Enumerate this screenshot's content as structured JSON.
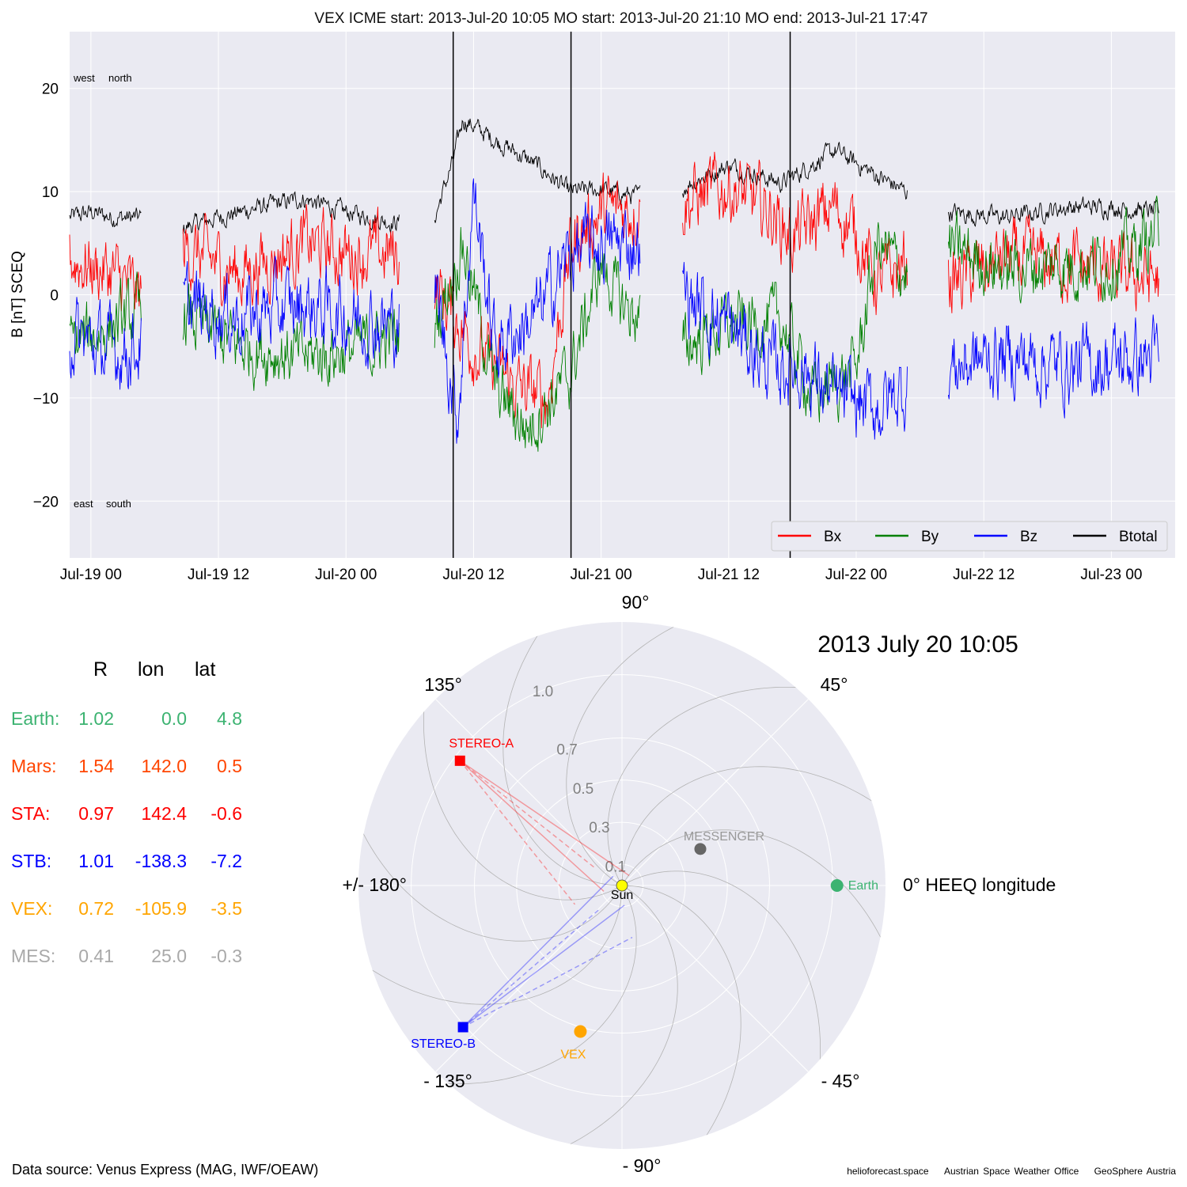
{
  "title": "VEX    ICME start: 2013-Jul-20 10:05   MO start: 2013-Jul-20 21:10   MO end: 2013-Jul-21 17:47",
  "colors": {
    "Bx": "#ff0000",
    "By": "#008000",
    "Bz": "#0000ff",
    "Btotal": "#000000",
    "panel_bg": "#eaeaf2",
    "grid": "#ffffff"
  },
  "chart_data": [
    {
      "type": "line",
      "ylabel": "B [nT] SCEQ",
      "ylim": [
        -25.5,
        25.5
      ],
      "yticks": [
        20,
        10,
        0,
        -10,
        -20
      ],
      "ytick_labels": [
        "20",
        "10",
        "0",
        "−10",
        "−20"
      ],
      "xlim": [
        "2013-07-18 22:00",
        "2013-07-23 06:00"
      ],
      "xticks": [
        "2013-07-19 00:00",
        "2013-07-19 12:00",
        "2013-07-20 00:00",
        "2013-07-20 12:00",
        "2013-07-21 00:00",
        "2013-07-21 12:00",
        "2013-07-22 00:00",
        "2013-07-22 12:00",
        "2013-07-23 00:00"
      ],
      "xtick_labels": [
        "Jul-19 00",
        "Jul-19 12",
        "Jul-20 00",
        "Jul-20 12",
        "Jul-21 00",
        "Jul-21 12",
        "Jul-22 00",
        "Jul-22 12",
        "Jul-23 00"
      ],
      "annotations": {
        "top_left": [
          "west",
          "north"
        ],
        "bottom_left": [
          "east",
          "south"
        ]
      },
      "vlines": [
        "2013-07-20 10:05",
        "2013-07-20 21:10",
        "2013-07-21 17:47"
      ],
      "legend": {
        "placement": "lower-right",
        "entries": [
          "Bx",
          "By",
          "Bz",
          "Btotal"
        ]
      },
      "grid": true,
      "data_segments": [
        [
          "2013-07-18 22:00",
          "2013-07-19 04:45"
        ],
        [
          "2013-07-19 08:40",
          "2013-07-20 05:00"
        ],
        [
          "2013-07-20 08:20",
          "2013-07-21 03:40"
        ],
        [
          "2013-07-21 07:40",
          "2013-07-22 04:50"
        ],
        [
          "2013-07-22 08:40",
          "2013-07-23 04:30"
        ]
      ],
      "series": [
        {
          "name": "Btotal",
          "points": [
            [
              "2013-07-18 22:00",
              7.5
            ],
            [
              "2013-07-19 00:00",
              8
            ],
            [
              "2013-07-19 02:00",
              7.5
            ],
            [
              "2013-07-19 04:30",
              7.5
            ],
            [
              "2013-07-19 08:40",
              6.5
            ],
            [
              "2013-07-19 12:00",
              7.5
            ],
            [
              "2013-07-19 16:00",
              8.5
            ],
            [
              "2013-07-19 20:00",
              9.3
            ],
            [
              "2013-07-20 00:00",
              8
            ],
            [
              "2013-07-20 04:30",
              7
            ],
            [
              "2013-07-20 08:20",
              7.5
            ],
            [
              "2013-07-20 10:05",
              13
            ],
            [
              "2013-07-20 11:00",
              17
            ],
            [
              "2013-07-20 14:00",
              15
            ],
            [
              "2013-07-20 18:00",
              12.5
            ],
            [
              "2013-07-20 21:00",
              10
            ],
            [
              "2013-07-21 00:00",
              10.2
            ],
            [
              "2013-07-21 03:30",
              9.5
            ],
            [
              "2013-07-21 07:40",
              10.5
            ],
            [
              "2013-07-21 12:00",
              12.5
            ],
            [
              "2013-07-21 17:00",
              10.8
            ],
            [
              "2013-07-21 22:00",
              14
            ],
            [
              "2013-07-22 02:00",
              11.5
            ],
            [
              "2013-07-22 04:40",
              10
            ],
            [
              "2013-07-22 08:40",
              8
            ],
            [
              "2013-07-22 14:00",
              7.5
            ],
            [
              "2013-07-22 20:00",
              8.5
            ],
            [
              "2013-07-23 00:00",
              8.5
            ],
            [
              "2013-07-23 04:20",
              8
            ]
          ]
        },
        {
          "name": "Bx",
          "points": [
            [
              "2013-07-18 22:00",
              3.5
            ],
            [
              "2013-07-19 02:00",
              2
            ],
            [
              "2013-07-19 04:30",
              0
            ],
            [
              "2013-07-19 08:40",
              4.5
            ],
            [
              "2013-07-19 14:00",
              2
            ],
            [
              "2013-07-19 20:00",
              5
            ],
            [
              "2013-07-20 00:00",
              4
            ],
            [
              "2013-07-20 04:30",
              4
            ],
            [
              "2013-07-20 08:20",
              1
            ],
            [
              "2013-07-20 12:00",
              -5
            ],
            [
              "2013-07-20 16:00",
              -9
            ],
            [
              "2013-07-20 19:00",
              -10
            ],
            [
              "2013-07-20 21:10",
              5
            ],
            [
              "2013-07-21 00:00",
              8
            ],
            [
              "2013-07-21 03:30",
              8.5
            ],
            [
              "2013-07-21 07:40",
              9
            ],
            [
              "2013-07-21 12:00",
              10.5
            ],
            [
              "2013-07-21 16:00",
              8
            ],
            [
              "2013-07-21 18:00",
              5.5
            ],
            [
              "2013-07-21 22:00",
              8.5
            ],
            [
              "2013-07-22 00:00",
              6
            ],
            [
              "2013-07-22 02:00",
              1
            ],
            [
              "2013-07-22 04:40",
              3
            ],
            [
              "2013-07-22 08:40",
              1
            ],
            [
              "2013-07-22 14:00",
              3.5
            ],
            [
              "2013-07-22 20:00",
              3
            ],
            [
              "2013-07-23 00:00",
              2
            ],
            [
              "2013-07-23 04:20",
              1.5
            ]
          ]
        },
        {
          "name": "By",
          "points": [
            [
              "2013-07-18 22:00",
              -5
            ],
            [
              "2013-07-19 02:00",
              -3
            ],
            [
              "2013-07-19 04:30",
              -2
            ],
            [
              "2013-07-19 08:40",
              -2
            ],
            [
              "2013-07-19 14:00",
              -5
            ],
            [
              "2013-07-19 20:00",
              -6
            ],
            [
              "2013-07-20 00:00",
              -5.5
            ],
            [
              "2013-07-20 04:30",
              -4
            ],
            [
              "2013-07-20 08:20",
              -3
            ],
            [
              "2013-07-20 11:00",
              5
            ],
            [
              "2013-07-20 14:00",
              -9
            ],
            [
              "2013-07-20 17:00",
              -13
            ],
            [
              "2013-07-20 21:00",
              -8
            ],
            [
              "2013-07-21 00:00",
              3
            ],
            [
              "2013-07-21 02:00",
              -1
            ],
            [
              "2013-07-21 03:30",
              -2
            ],
            [
              "2013-07-21 07:40",
              -5
            ],
            [
              "2013-07-21 12:00",
              -3
            ],
            [
              "2013-07-21 17:00",
              -2.5
            ],
            [
              "2013-07-21 20:00",
              -10
            ],
            [
              "2013-07-22 00:00",
              -7
            ],
            [
              "2013-07-22 02:00",
              5
            ],
            [
              "2013-07-22 04:40",
              2
            ],
            [
              "2013-07-22 08:40",
              4.5
            ],
            [
              "2013-07-22 14:00",
              2.5
            ],
            [
              "2013-07-22 20:00",
              3
            ],
            [
              "2013-07-23 00:00",
              3
            ],
            [
              "2013-07-23 04:20",
              6
            ]
          ]
        },
        {
          "name": "Bz",
          "points": [
            [
              "2013-07-18 22:00",
              -4
            ],
            [
              "2013-07-19 02:00",
              -5.5
            ],
            [
              "2013-07-19 04:30",
              -5
            ],
            [
              "2013-07-19 08:40",
              -1
            ],
            [
              "2013-07-19 14:00",
              -2
            ],
            [
              "2013-07-19 20:00",
              -1
            ],
            [
              "2013-07-20 00:00",
              -2
            ],
            [
              "2013-07-20 04:30",
              -3
            ],
            [
              "2013-07-20 08:20",
              1
            ],
            [
              "2013-07-20 10:30",
              -12
            ],
            [
              "2013-07-20 12:00",
              10
            ],
            [
              "2013-07-20 14:00",
              -5
            ],
            [
              "2013-07-20 18:00",
              -2
            ],
            [
              "2013-07-20 21:00",
              4
            ],
            [
              "2013-07-21 00:00",
              5
            ],
            [
              "2013-07-21 03:30",
              5
            ],
            [
              "2013-07-21 07:40",
              0
            ],
            [
              "2013-07-21 12:00",
              -3
            ],
            [
              "2013-07-21 16:00",
              -7
            ],
            [
              "2013-07-21 19:00",
              -7
            ],
            [
              "2013-07-21 22:00",
              -10
            ],
            [
              "2013-07-22 02:00",
              -11
            ],
            [
              "2013-07-22 04:40",
              -9
            ],
            [
              "2013-07-22 08:40",
              -7
            ],
            [
              "2013-07-22 14:00",
              -6
            ],
            [
              "2013-07-22 20:00",
              -7
            ],
            [
              "2013-07-23 00:00",
              -6.5
            ],
            [
              "2013-07-23 04:20",
              -6
            ]
          ]
        }
      ]
    },
    {
      "type": "scatter",
      "subtype": "polar",
      "title": "2013 July 20  10:05",
      "theta_labels": [
        "90°",
        "45°",
        "0° HEEQ longitude",
        "- 45°",
        "- 90°",
        "- 135°",
        "+/- 180°",
        "135°"
      ],
      "r_max": 1.25,
      "r_ticks": [
        0.1,
        0.3,
        0.5,
        0.7,
        1.0
      ],
      "r_tick_labels": [
        "0.1",
        "0.3",
        "0.5",
        "0.7",
        "1.0"
      ],
      "r_tick_label_angle_deg": 112.5,
      "spirals": 12,
      "bodies": [
        {
          "name": "Sun",
          "r": 0,
          "lon": 0,
          "color": "#ffff00",
          "size": 14,
          "label_dx": 0,
          "label_dy": 12,
          "label_color": "#000000"
        },
        {
          "name": "MESSENGER",
          "r": 0.41,
          "lon": 25.0,
          "color": "#666666",
          "size": 15,
          "label_dx": 30,
          "label_dy": -16,
          "label_color": "#999999"
        },
        {
          "name": "Earth",
          "r": 1.02,
          "lon": 0.0,
          "color": "#3cb371",
          "size": 16,
          "label_dx": 14,
          "label_dy": 0,
          "label_color": "#3cb371",
          "anchor": "start"
        },
        {
          "name": "VEX",
          "r": 0.72,
          "lon": -105.9,
          "color": "#ffa500",
          "size": 16,
          "label_dx": -9,
          "label_dy": 29,
          "label_color": "#ffa500"
        },
        {
          "name": "STEREO-A",
          "r": 0.97,
          "lon": 142.4,
          "color": "#ff0000",
          "size": 13,
          "marker": "square",
          "label_dx": 27,
          "label_dy": -22,
          "label_color": "#ff0000"
        },
        {
          "name": "STEREO-B",
          "r": 1.01,
          "lon": -138.3,
          "color": "#0000ff",
          "size": 13,
          "marker": "square",
          "label_dx": -25,
          "label_dy": 21,
          "label_color": "#0000ff"
        }
      ]
    }
  ],
  "positions_table": {
    "headers": [
      "R",
      "lon",
      "lat"
    ],
    "rows": [
      {
        "name": "Earth:",
        "R": "1.02",
        "lon": "0.0",
        "lat": "4.8",
        "color": "#3cb371"
      },
      {
        "name": "Mars:",
        "R": "1.54",
        "lon": "142.0",
        "lat": "0.5",
        "color": "#ff4500"
      },
      {
        "name": "STA:",
        "R": "0.97",
        "lon": "142.4",
        "lat": "-0.6",
        "color": "#ff0000"
      },
      {
        "name": "STB:",
        "R": "1.01",
        "lon": "-138.3",
        "lat": "-7.2",
        "color": "#0000ff"
      },
      {
        "name": "VEX:",
        "R": "0.72",
        "lon": "-105.9",
        "lat": "-3.5",
        "color": "#ffa500"
      },
      {
        "name": "MES:",
        "R": "0.41",
        "lon": "25.0",
        "lat": "-0.3",
        "color": "#a9a9a9"
      }
    ]
  },
  "footer": {
    "source": "Data source: Venus Express (MAG, IWF/OEAW)",
    "credits": [
      "helioforecast.space",
      "Austrian Space Weather Office",
      "GeoSphere Austria"
    ]
  }
}
